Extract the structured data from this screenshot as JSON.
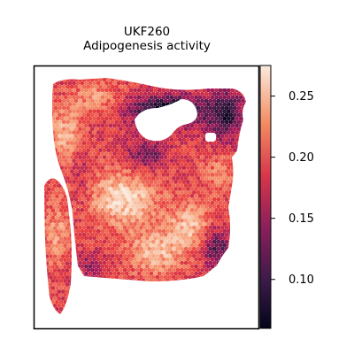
{
  "chart_data": {
    "type": "heatmap",
    "subtype": "spatial-spot-plot",
    "title": "UKF260",
    "subtitle": "Adipogenesis activity",
    "xlabel": "",
    "ylabel": "",
    "grid": false,
    "colormap": "rocket",
    "colormap_stops": [
      "#03051a",
      "#4c1d4b",
      "#a11a5b",
      "#e83f3f",
      "#f69c73",
      "#faebdd"
    ],
    "value_range": [
      0.06,
      0.275
    ],
    "colorbar": {
      "placement": "right",
      "ticks": [
        0.1,
        0.15,
        0.2,
        0.25
      ],
      "tick_labels": [
        "0.10",
        "0.15",
        "0.20",
        "0.25"
      ]
    },
    "description_regions": {
      "high": "center-left and lower-center tissue",
      "low": "upper-right rim near the tissue hole"
    }
  }
}
